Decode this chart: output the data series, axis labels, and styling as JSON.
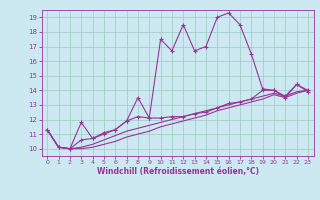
{
  "title": "",
  "xlabel": "Windchill (Refroidissement éolien,°C)",
  "bg_color": "#cce8f0",
  "grid_color": "#99ccbb",
  "line_color": "#993399",
  "xlim": [
    -0.5,
    23.5
  ],
  "ylim": [
    9.5,
    19.5
  ],
  "xticks": [
    0,
    1,
    2,
    3,
    4,
    5,
    6,
    7,
    8,
    9,
    10,
    11,
    12,
    13,
    14,
    15,
    16,
    17,
    18,
    19,
    20,
    21,
    22,
    23
  ],
  "yticks": [
    10,
    11,
    12,
    13,
    14,
    15,
    16,
    17,
    18,
    19
  ],
  "line1_x": [
    0,
    1,
    2,
    3,
    4,
    5,
    6,
    7,
    8,
    9,
    10,
    11,
    12,
    13,
    14,
    15,
    16,
    17,
    18,
    19,
    20,
    21,
    22,
    23
  ],
  "line1_y": [
    11.3,
    10.1,
    10.0,
    11.8,
    10.7,
    11.1,
    11.3,
    11.9,
    13.5,
    12.1,
    17.5,
    16.7,
    18.5,
    16.7,
    17.0,
    19.0,
    19.3,
    18.5,
    16.5,
    14.1,
    14.0,
    13.5,
    14.4,
    13.9
  ],
  "line2_x": [
    0,
    1,
    2,
    3,
    4,
    5,
    6,
    7,
    8,
    9,
    10,
    11,
    12,
    13,
    14,
    15,
    16,
    17,
    18,
    19,
    20,
    21,
    22,
    23
  ],
  "line2_y": [
    11.3,
    10.1,
    10.0,
    10.6,
    10.7,
    11.0,
    11.3,
    11.9,
    12.2,
    12.1,
    12.1,
    12.2,
    12.2,
    12.4,
    12.5,
    12.8,
    13.1,
    13.2,
    13.4,
    14.0,
    14.0,
    13.6,
    14.4,
    14.0
  ],
  "line3_x": [
    0,
    1,
    2,
    3,
    4,
    5,
    6,
    7,
    8,
    9,
    10,
    11,
    12,
    13,
    14,
    15,
    16,
    17,
    18,
    19,
    20,
    21,
    22,
    23
  ],
  "line3_y": [
    11.3,
    10.1,
    10.0,
    10.1,
    10.3,
    10.6,
    10.9,
    11.2,
    11.4,
    11.6,
    11.8,
    12.0,
    12.2,
    12.4,
    12.6,
    12.8,
    13.0,
    13.2,
    13.4,
    13.6,
    13.8,
    13.6,
    13.9,
    14.0
  ],
  "line4_x": [
    0,
    1,
    2,
    3,
    4,
    5,
    6,
    7,
    8,
    9,
    10,
    11,
    12,
    13,
    14,
    15,
    16,
    17,
    18,
    19,
    20,
    21,
    22,
    23
  ],
  "line4_y": [
    11.3,
    10.1,
    10.0,
    10.0,
    10.1,
    10.3,
    10.5,
    10.8,
    11.0,
    11.2,
    11.5,
    11.7,
    11.9,
    12.1,
    12.3,
    12.6,
    12.8,
    13.0,
    13.2,
    13.4,
    13.7,
    13.5,
    13.8,
    14.0
  ]
}
